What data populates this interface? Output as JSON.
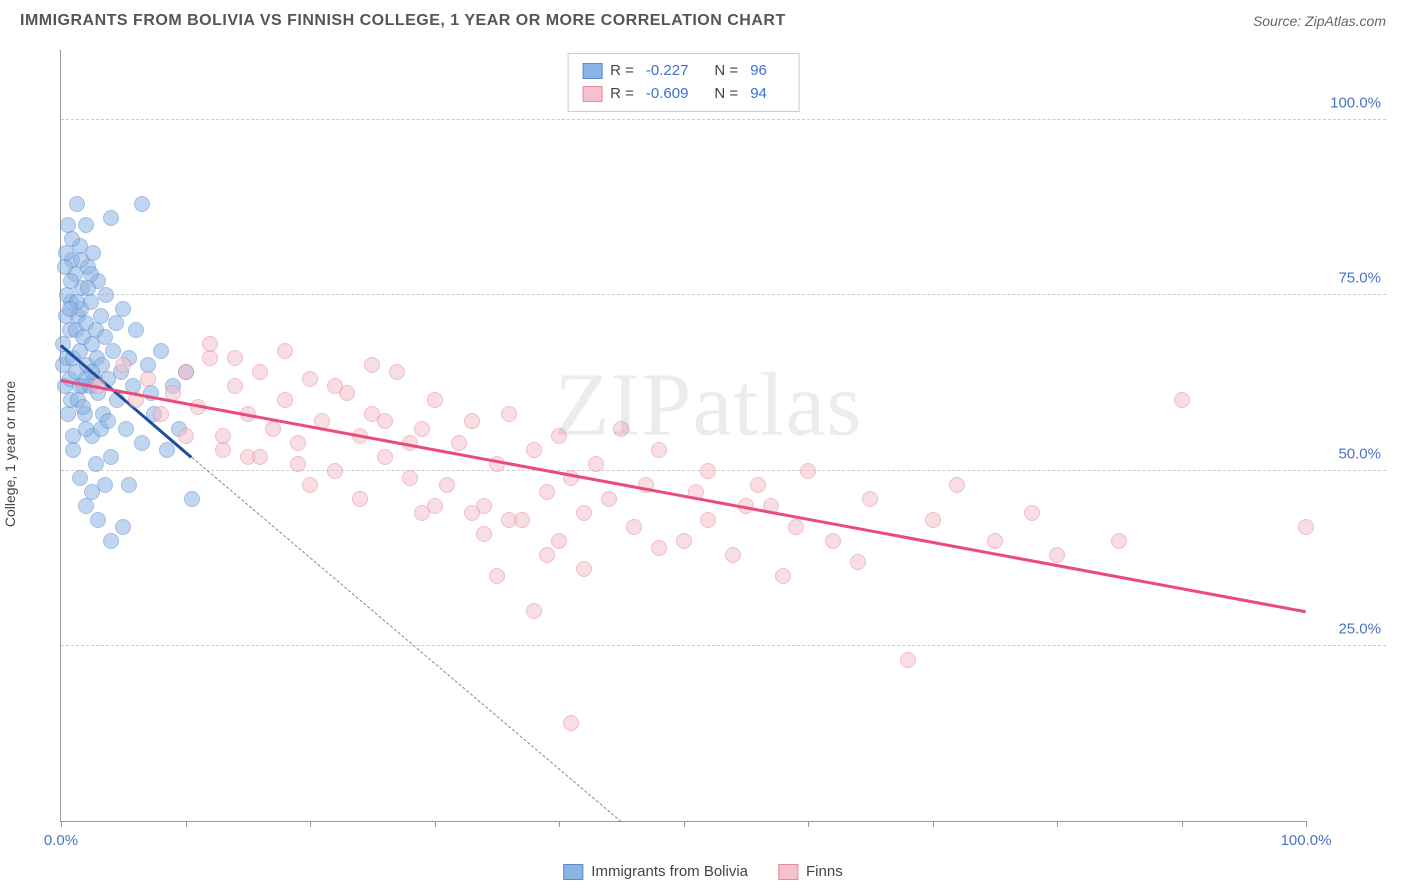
{
  "title": "IMMIGRANTS FROM BOLIVIA VS FINNISH COLLEGE, 1 YEAR OR MORE CORRELATION CHART",
  "source_prefix": "Source: ",
  "source_site": "ZipAtlas.com",
  "y_axis_label": "College, 1 year or more",
  "watermark_a": "ZIP",
  "watermark_b": "atlas",
  "chart": {
    "type": "scatter",
    "xlim": [
      0,
      100
    ],
    "ylim": [
      0,
      110
    ],
    "y_ticks": [
      25,
      50,
      75,
      100
    ],
    "y_tick_labels": [
      "25.0%",
      "50.0%",
      "75.0%",
      "100.0%"
    ],
    "x_minor_ticks": [
      0,
      10,
      20,
      30,
      40,
      50,
      60,
      70,
      80,
      90,
      100
    ],
    "x_tick_labels": [
      {
        "pos": 0,
        "text": "0.0%"
      },
      {
        "pos": 100,
        "text": "100.0%"
      }
    ],
    "background_color": "#ffffff",
    "grid_color": "#cccccc",
    "axis_color": "#999999",
    "series": [
      {
        "name": "Immigrants from Bolivia",
        "marker_color": "#8db4e2",
        "marker_border": "#5a8bd0",
        "trend_color": "#1f4e9c",
        "R": "-0.227",
        "N": "96",
        "trend": {
          "x1": 0,
          "y1": 68,
          "x2": 10.5,
          "y2": 52
        },
        "trend_dash": {
          "x1": 10.5,
          "y1": 52,
          "x2": 45,
          "y2": 0
        },
        "points": [
          [
            0.2,
            65
          ],
          [
            0.2,
            68
          ],
          [
            0.3,
            62
          ],
          [
            0.4,
            72
          ],
          [
            0.5,
            66
          ],
          [
            0.6,
            58
          ],
          [
            0.6,
            85
          ],
          [
            0.7,
            70
          ],
          [
            0.7,
            63
          ],
          [
            0.8,
            60
          ],
          [
            0.8,
            74
          ],
          [
            0.9,
            80
          ],
          [
            1.0,
            55
          ],
          [
            1.0,
            66
          ],
          [
            1.1,
            78
          ],
          [
            1.2,
            70
          ],
          [
            1.2,
            64
          ],
          [
            1.3,
            88
          ],
          [
            1.4,
            72
          ],
          [
            1.4,
            60
          ],
          [
            1.5,
            67
          ],
          [
            1.5,
            82
          ],
          [
            1.6,
            73
          ],
          [
            1.7,
            76
          ],
          [
            1.8,
            62
          ],
          [
            1.8,
            69
          ],
          [
            1.9,
            58
          ],
          [
            2.0,
            85
          ],
          [
            2.0,
            71
          ],
          [
            2.1,
            65
          ],
          [
            2.2,
            79
          ],
          [
            2.3,
            62
          ],
          [
            2.4,
            74
          ],
          [
            2.5,
            68
          ],
          [
            2.5,
            55
          ],
          [
            2.6,
            81
          ],
          [
            2.7,
            63
          ],
          [
            2.8,
            70
          ],
          [
            2.9,
            66
          ],
          [
            3.0,
            77
          ],
          [
            3.0,
            61
          ],
          [
            3.2,
            72
          ],
          [
            3.3,
            65
          ],
          [
            3.4,
            58
          ],
          [
            3.5,
            69
          ],
          [
            3.6,
            75
          ],
          [
            3.8,
            63
          ],
          [
            4.0,
            86
          ],
          [
            4.0,
            52
          ],
          [
            4.2,
            67
          ],
          [
            4.4,
            71
          ],
          [
            4.5,
            60
          ],
          [
            4.8,
            64
          ],
          [
            5.0,
            73
          ],
          [
            5.2,
            56
          ],
          [
            5.5,
            66
          ],
          [
            5.5,
            48
          ],
          [
            5.8,
            62
          ],
          [
            6.0,
            70
          ],
          [
            6.5,
            88
          ],
          [
            6.5,
            54
          ],
          [
            7.0,
            65
          ],
          [
            7.2,
            61
          ],
          [
            7.5,
            58
          ],
          [
            8.0,
            67
          ],
          [
            8.5,
            53
          ],
          [
            9.0,
            62
          ],
          [
            9.5,
            56
          ],
          [
            10.0,
            64
          ],
          [
            10.5,
            46
          ],
          [
            2.0,
            45
          ],
          [
            2.5,
            47
          ],
          [
            3.0,
            43
          ],
          [
            3.5,
            48
          ],
          [
            4.0,
            40
          ],
          [
            5.0,
            42
          ],
          [
            1.5,
            49
          ],
          [
            2.8,
            51
          ],
          [
            1.0,
            53
          ],
          [
            2.0,
            56
          ],
          [
            0.5,
            75
          ],
          [
            0.8,
            77
          ],
          [
            1.3,
            74
          ],
          [
            2.2,
            76
          ],
          [
            0.3,
            79
          ],
          [
            0.7,
            73
          ],
          [
            1.6,
            80
          ],
          [
            2.4,
            78
          ],
          [
            0.4,
            81
          ],
          [
            0.9,
            83
          ],
          [
            1.5,
            62
          ],
          [
            2.0,
            63
          ],
          [
            2.5,
            64
          ],
          [
            1.8,
            59
          ],
          [
            3.2,
            56
          ],
          [
            3.8,
            57
          ]
        ]
      },
      {
        "name": "Finns",
        "marker_color": "#f4c2cd",
        "marker_border": "#e88aa0",
        "trend_color": "#e94b7a",
        "R": "-0.609",
        "N": "94",
        "trend": {
          "x1": 0,
          "y1": 63,
          "x2": 100,
          "y2": 30
        },
        "points": [
          [
            3,
            62
          ],
          [
            5,
            65
          ],
          [
            6,
            60
          ],
          [
            7,
            63
          ],
          [
            8,
            58
          ],
          [
            9,
            61
          ],
          [
            10,
            64
          ],
          [
            11,
            59
          ],
          [
            12,
            66
          ],
          [
            13,
            55
          ],
          [
            14,
            62
          ],
          [
            15,
            58
          ],
          [
            15,
            52
          ],
          [
            16,
            64
          ],
          [
            17,
            56
          ],
          [
            18,
            60
          ],
          [
            19,
            54
          ],
          [
            20,
            63
          ],
          [
            21,
            57
          ],
          [
            22,
            50
          ],
          [
            23,
            61
          ],
          [
            24,
            55
          ],
          [
            25,
            58
          ],
          [
            26,
            52
          ],
          [
            27,
            64
          ],
          [
            28,
            49
          ],
          [
            29,
            56
          ],
          [
            30,
            60
          ],
          [
            31,
            48
          ],
          [
            32,
            54
          ],
          [
            33,
            57
          ],
          [
            34,
            45
          ],
          [
            35,
            51
          ],
          [
            36,
            58
          ],
          [
            37,
            43
          ],
          [
            38,
            53
          ],
          [
            39,
            47
          ],
          [
            40,
            55
          ],
          [
            41,
            49
          ],
          [
            42,
            44
          ],
          [
            43,
            51
          ],
          [
            45,
            56
          ],
          [
            46,
            42
          ],
          [
            47,
            48
          ],
          [
            48,
            53
          ],
          [
            50,
            40
          ],
          [
            51,
            47
          ],
          [
            52,
            50
          ],
          [
            54,
            38
          ],
          [
            55,
            45
          ],
          [
            56,
            48
          ],
          [
            58,
            35
          ],
          [
            59,
            42
          ],
          [
            60,
            50
          ],
          [
            62,
            40
          ],
          [
            64,
            37
          ],
          [
            65,
            46
          ],
          [
            68,
            23
          ],
          [
            70,
            43
          ],
          [
            72,
            48
          ],
          [
            75,
            40
          ],
          [
            78,
            44
          ],
          [
            80,
            38
          ],
          [
            85,
            40
          ],
          [
            90,
            60
          ],
          [
            100,
            42
          ],
          [
            12,
            68
          ],
          [
            14,
            66
          ],
          [
            18,
            67
          ],
          [
            25,
            65
          ],
          [
            30,
            45
          ],
          [
            33,
            44
          ],
          [
            36,
            43
          ],
          [
            40,
            40
          ],
          [
            10,
            55
          ],
          [
            13,
            53
          ],
          [
            16,
            52
          ],
          [
            20,
            48
          ],
          [
            35,
            35
          ],
          [
            38,
            30
          ],
          [
            41,
            14
          ],
          [
            42,
            36
          ],
          [
            22,
            62
          ],
          [
            26,
            57
          ],
          [
            28,
            54
          ],
          [
            19,
            51
          ],
          [
            24,
            46
          ],
          [
            29,
            44
          ],
          [
            34,
            41
          ],
          [
            39,
            38
          ],
          [
            44,
            46
          ],
          [
            48,
            39
          ],
          [
            52,
            43
          ],
          [
            57,
            45
          ]
        ]
      }
    ]
  },
  "legend_bottom": {
    "items": [
      {
        "label": "Immigrants from Bolivia",
        "fill": "#8db4e2",
        "border": "#5a8bd0"
      },
      {
        "label": "Finns",
        "fill": "#f4c2cd",
        "border": "#e88aa0"
      }
    ]
  }
}
